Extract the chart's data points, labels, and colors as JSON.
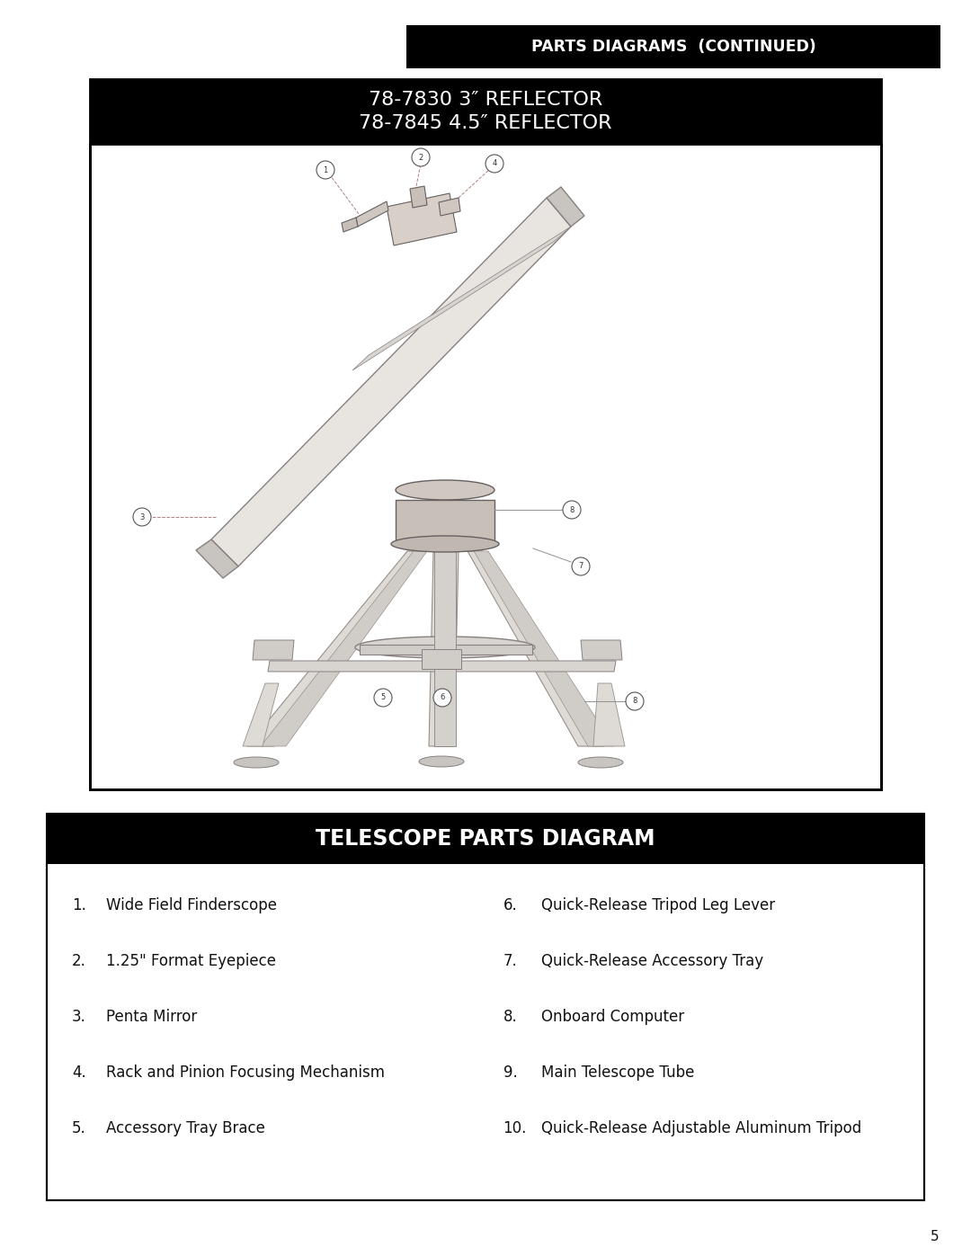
{
  "page_bg": "#ffffff",
  "top_banner_text": "PARTS DIAGRAMS  (CONTINUED)",
  "top_banner_bg": "#000000",
  "top_banner_text_color": "#ffffff",
  "diagram_title_bg": "#000000",
  "diagram_title_text_color": "#ffffff",
  "diagram_title_line1": "78-7830 3″ REFLECTOR",
  "diagram_title_line2": "78-7845 4.5″ REFLECTOR",
  "parts_banner_text": "TELESCOPE PARTS DIAGRAM",
  "parts_banner_bg": "#000000",
  "parts_banner_text_color": "#ffffff",
  "left_parts": [
    [
      "1.",
      "Wide Field Finderscope"
    ],
    [
      "2.",
      "1.25\" Format Eyepiece"
    ],
    [
      "3.",
      "Penta Mirror"
    ],
    [
      "4.",
      "Rack and Pinion Focusing Mechanism"
    ],
    [
      "5.",
      "Accessory Tray Brace"
    ]
  ],
  "right_parts": [
    [
      "6.",
      "Quick-Release Tripod Leg Lever"
    ],
    [
      "7.",
      "Quick-Release Accessory Tray"
    ],
    [
      "8.",
      "Onboard Computer"
    ],
    [
      "9.",
      "Main Telescope Tube"
    ],
    [
      "10.",
      "Quick-Release Adjustable Aluminum Tripod"
    ]
  ],
  "page_number": "5"
}
